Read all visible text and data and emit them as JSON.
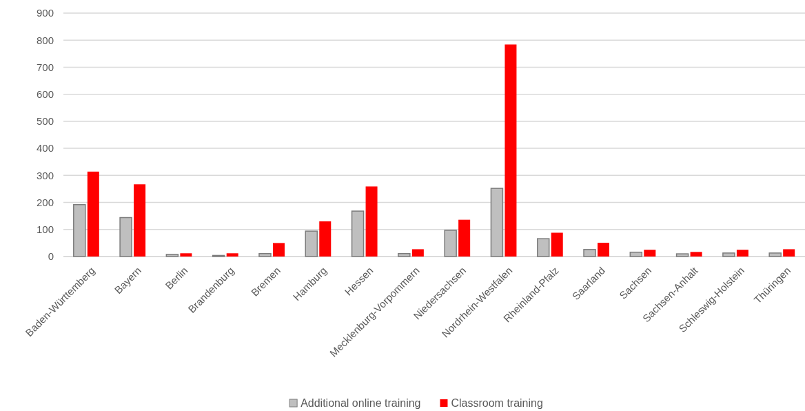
{
  "chart_data": {
    "type": "bar",
    "categories": [
      "Baden-Württemberg",
      "Bayern",
      "Berlin",
      "Brandenburg",
      "Bremen",
      "Hamburg",
      "Hessen",
      "Mecklenburg-Vorpommern",
      "Niedersachsen",
      "Nordrhein-Westfalen",
      "Rheinland-Pfalz",
      "Saarland",
      "Sachsen",
      "Sachsen-Anhalt",
      "Schleswig-Holstein",
      "Thüringen"
    ],
    "series": [
      {
        "name": "Additional online training",
        "color": "#bfbfbf",
        "values": [
          192,
          144,
          8,
          4,
          11,
          94,
          168,
          11,
          97,
          252,
          66,
          26,
          16,
          10,
          13,
          13
        ]
      },
      {
        "name": "Classroom training",
        "color": "#ff0000",
        "values": [
          314,
          267,
          12,
          12,
          50,
          130,
          259,
          27,
          136,
          784,
          88,
          51,
          25,
          17,
          25,
          27
        ]
      }
    ],
    "ylim": [
      0,
      900
    ],
    "yticks": [
      0,
      100,
      200,
      300,
      400,
      500,
      600,
      700,
      800,
      900
    ],
    "grid": "y",
    "legend": "bottom"
  }
}
